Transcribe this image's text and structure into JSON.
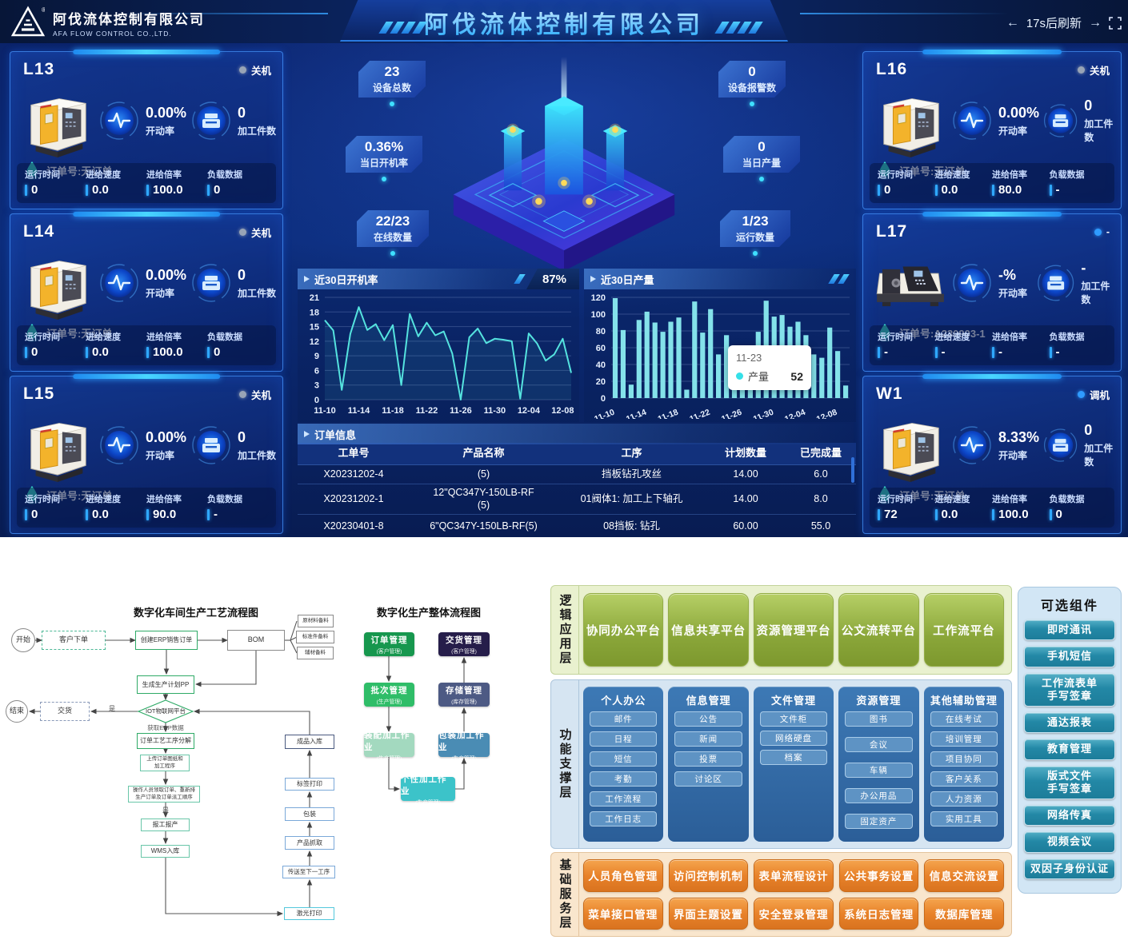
{
  "header": {
    "logo_title": "阿伐流体控制有限公司",
    "logo_subtitle": "AFA FLOW CONTROL CO.,LTD.",
    "center_title": "阿伐流体控制有限公司",
    "refresh_text": "17s后刷新",
    "left_arrow": "←",
    "right_arrow": "→"
  },
  "machine_labels": {
    "rate": "开动率",
    "count": "加工件数",
    "order_icon": "drop",
    "metrics": [
      "运行时间",
      "进给速度",
      "进给倍率",
      "负载数据"
    ]
  },
  "machines": [
    {
      "id": "L13",
      "status": "关机",
      "status_color": "#98a4b6",
      "type": "mill",
      "rate": "0.00%",
      "count": "0",
      "order": "订单号:无订单",
      "metrics": [
        "0",
        "0.0",
        "100.0",
        "0"
      ]
    },
    {
      "id": "L14",
      "status": "关机",
      "status_color": "#98a4b6",
      "type": "mill",
      "rate": "0.00%",
      "count": "0",
      "order": "订单号:无订单",
      "metrics": [
        "0",
        "0.0",
        "100.0",
        "0"
      ]
    },
    {
      "id": "L15",
      "status": "关机",
      "status_color": "#98a4b6",
      "type": "mill",
      "rate": "0.00%",
      "count": "0",
      "order": "订单号:无订单",
      "metrics": [
        "0",
        "0.0",
        "90.0",
        "-"
      ]
    },
    {
      "id": "L16",
      "status": "关机",
      "status_color": "#98a4b6",
      "type": "mill",
      "rate": "0.00%",
      "count": "0",
      "order": "订单号:无订单",
      "metrics": [
        "0",
        "0.0",
        "80.0",
        "-"
      ]
    },
    {
      "id": "L17",
      "status": "-",
      "status_color": "#2f9bff",
      "type": "lathe",
      "rate": "-%",
      "count": "-",
      "order": "订单号:A230903-1",
      "metrics": [
        "-",
        "-",
        "-",
        "-"
      ]
    },
    {
      "id": "W1",
      "status": "调机",
      "status_color": "#2f9bff",
      "type": "mill",
      "rate": "8.33%",
      "count": "0",
      "order": "订单号:无订单",
      "metrics": [
        "72",
        "0.0",
        "100.0",
        "0"
      ]
    }
  ],
  "stats": [
    {
      "value": "23",
      "label": "设备总数"
    },
    {
      "value": "0",
      "label": "设备报警数"
    },
    {
      "value": "0.36%",
      "label": "当日开机率"
    },
    {
      "value": "0",
      "label": "当日产量"
    },
    {
      "value": "22/23",
      "label": "在线数量"
    },
    {
      "value": "1/23",
      "label": "运行数量"
    }
  ],
  "chart_data": [
    {
      "type": "line",
      "title": "近30日开机率",
      "badge": "87%",
      "ylim": [
        0,
        21
      ],
      "yticks": [
        0,
        3,
        6,
        9,
        12,
        15,
        18,
        21
      ],
      "x_tick_labels": [
        "11-10",
        "11-14",
        "11-18",
        "11-22",
        "11-26",
        "11-30",
        "12-04",
        "12-08"
      ],
      "x_tick_every": 4,
      "values": [
        16.3,
        14.2,
        2,
        13.5,
        19,
        14.3,
        15.5,
        12.2,
        15.3,
        3,
        17.6,
        13,
        15.8,
        13.2,
        14,
        9.5,
        0,
        12.8,
        14.6,
        11.6,
        12.5,
        12.3,
        12,
        0.2,
        13.6,
        11.5,
        8,
        9.3,
        12.5,
        5.5
      ],
      "line_color": "#55e3df",
      "grid": true,
      "legend": "none"
    },
    {
      "type": "bar",
      "title": "近30日产量",
      "ylim": [
        0,
        120
      ],
      "yticks": [
        0,
        20,
        40,
        60,
        80,
        100,
        120
      ],
      "x_tick_labels": [
        "11-10",
        "11-14",
        "11-18",
        "11-22",
        "11-26",
        "11-30",
        "12-04",
        "12-08"
      ],
      "x_tick_every": 4,
      "values": [
        119,
        81,
        16,
        93,
        103,
        90,
        79,
        91,
        96,
        10,
        115,
        78,
        106,
        52,
        75,
        40,
        30,
        60,
        79,
        116,
        97,
        99,
        85,
        91,
        75,
        52,
        48,
        84,
        56,
        15
      ],
      "bar_color": "#84e2ea",
      "grid": true,
      "legend": "none",
      "tooltip": {
        "date": "11-23",
        "series": "产量",
        "value": "52"
      }
    }
  ],
  "orders": {
    "title": "订单信息",
    "columns": [
      "工单号",
      "产品名称",
      "工序",
      "计划数量",
      "已完成量"
    ],
    "rows": [
      [
        "X20231202-4",
        "(5)",
        "挡板钻孔攻丝",
        "14.00",
        "6.0"
      ],
      [
        "X20231202-1",
        "12\"QC347Y-150LB-RF\n(5)",
        "01阀体1: 加工上下轴孔",
        "14.00",
        "8.0"
      ],
      [
        "X20230401-8",
        "6\"QC347Y-150LB-RF(5)",
        "08挡板: 钻孔",
        "60.00",
        "55.0"
      ]
    ]
  },
  "flow1": {
    "title": "数字化车间生产工艺流程图",
    "nodes": {
      "start": "开始",
      "customer_order": "客户下单",
      "erp_order": "创建ERP销售订单",
      "bom": "BOM",
      "mat1": "原材料备料",
      "mat2": "标准件备料",
      "mat3": "辅材备料",
      "plan": "生成生产计划PP",
      "iot": "IOT物联网平台",
      "iot_note": "获取ERP数据",
      "deliver": "交货",
      "end": "结束",
      "yes1": "是",
      "decompose": "订单工艺工序分解",
      "upload": "上传订单图纸和\n加工程序",
      "operator": "操作人员领取订单、重新排\n生产订单及订单派工顺序",
      "yes2": "是",
      "report": "报工报产",
      "wms": "WMS入库",
      "finished": "成品入库",
      "label_print": "标签打印",
      "pack": "包装",
      "grab": "产品抓取",
      "next_process": "传送至下一工序",
      "laser": "激光打印"
    }
  },
  "flow2": {
    "title": "数字化生产整体流程图",
    "boxes": [
      {
        "label": "订单管理",
        "sub": "(客户管理)",
        "color": "#17974e"
      },
      {
        "label": "批次管理",
        "sub": "(生产管理)",
        "color": "#2fbd68"
      },
      {
        "label": "装配加工作业",
        "sub": "(生产管理)",
        "color": "#a3d9bf"
      },
      {
        "label": "个性加工作业",
        "sub": "(生产管理)",
        "color": "#3cc3c9"
      },
      {
        "label": "包装加工作业",
        "sub": "(生产管理)",
        "color": "#4a8cb4"
      },
      {
        "label": "存储管理",
        "sub": "(库存管理)",
        "color": "#4d5a84"
      },
      {
        "label": "交货管理",
        "sub": "(客户管理)",
        "color": "#261d4a"
      }
    ]
  },
  "arch": {
    "layer1": {
      "name": "逻辑应用层",
      "items": [
        "协同办公平台",
        "信息共享平台",
        "资源管理平台",
        "公文流转平台",
        "工作流平台"
      ]
    },
    "layer2": {
      "name": "功能支撑层",
      "columns": [
        {
          "title": "个人办公",
          "items": [
            "邮件",
            "日程",
            "短信",
            "考勤",
            "工作流程",
            "工作日志"
          ]
        },
        {
          "title": "信息管理",
          "items": [
            "公告",
            "新闻",
            "投票",
            "讨论区"
          ]
        },
        {
          "title": "文件管理",
          "items": [
            "文件柜",
            "网络硬盘",
            "档案"
          ]
        },
        {
          "title": "资源管理",
          "items": [
            "图书",
            "会议",
            "车辆",
            "办公用品",
            "固定资产"
          ]
        },
        {
          "title": "其他辅助管理",
          "items": [
            "在线考试",
            "培训管理",
            "项目协同",
            "客户关系",
            "人力资源",
            "实用工具"
          ]
        }
      ]
    },
    "layer3": {
      "name": "基础服务层",
      "items": [
        "人员角色管理",
        "访问控制机制",
        "表单流程设计",
        "公共事务设置",
        "信息交流设置",
        "菜单接口管理",
        "界面主题设置",
        "安全登录管理",
        "系统日志管理",
        "数据库管理"
      ]
    },
    "optional": {
      "title": "可选组件",
      "items": [
        "即时通讯",
        "手机短信",
        "工作流表单\n手写签章",
        "通达报表",
        "教育管理",
        "版式文件\n手写签章",
        "网络传真",
        "视频会议",
        "双因子身份认证"
      ]
    }
  }
}
